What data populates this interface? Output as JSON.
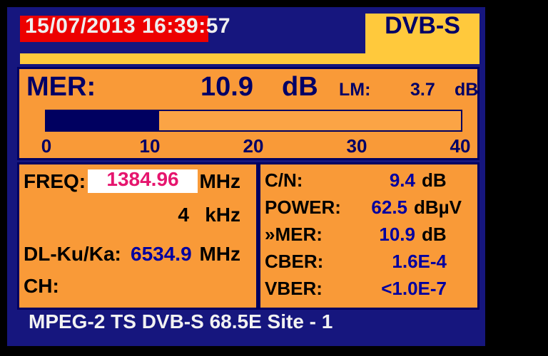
{
  "colors": {
    "background": "#000000",
    "screen_navy": "#16167E",
    "panel_border_navy": "#000060",
    "orange": "#F99A38",
    "yellow": "#FFC93C",
    "red_badge": "#ED0000",
    "value_blue": "#0000A0",
    "freq_magenta": "#E6156E",
    "white_text": "#F2F2F2"
  },
  "header": {
    "datetime": "15/07/2013 16:39:57",
    "mode": "DVB-S"
  },
  "mer_panel": {
    "label": "MER:",
    "value": "10.9",
    "unit": "dB",
    "lm_label": "LM:",
    "lm_value": "3.7",
    "lm_unit": "dB",
    "bar": {
      "min": 0,
      "max": 40,
      "value": 10.9,
      "fill_style": "width:27.25%"
    },
    "ticks": [
      "0",
      "10",
      "20",
      "30",
      "40"
    ]
  },
  "freq_panel": {
    "freq_label": "FREQ:",
    "freq_value": "1384.96",
    "freq_unit": "MHz",
    "step_value": "4",
    "step_unit": "kHz",
    "dl_label": "DL-Ku/Ka:",
    "dl_value": "6534.9",
    "dl_unit": "MHz",
    "ch_label": "CH:"
  },
  "measure_panel": {
    "rows": [
      {
        "label": "C/N:",
        "value": "9.4",
        "unit": "dB"
      },
      {
        "label": "POWER:",
        "value": "62.5",
        "unit": "dBµV"
      },
      {
        "label": "»MER:",
        "value": "10.9",
        "unit": "dB"
      },
      {
        "label": "CBER:",
        "value": "1.6E-4",
        "unit": ""
      },
      {
        "label": "VBER:",
        "value": "<1.0E-7",
        "unit": ""
      }
    ]
  },
  "footer": {
    "text": "MPEG-2 TS DVB-S 68.5E Site - 1"
  }
}
